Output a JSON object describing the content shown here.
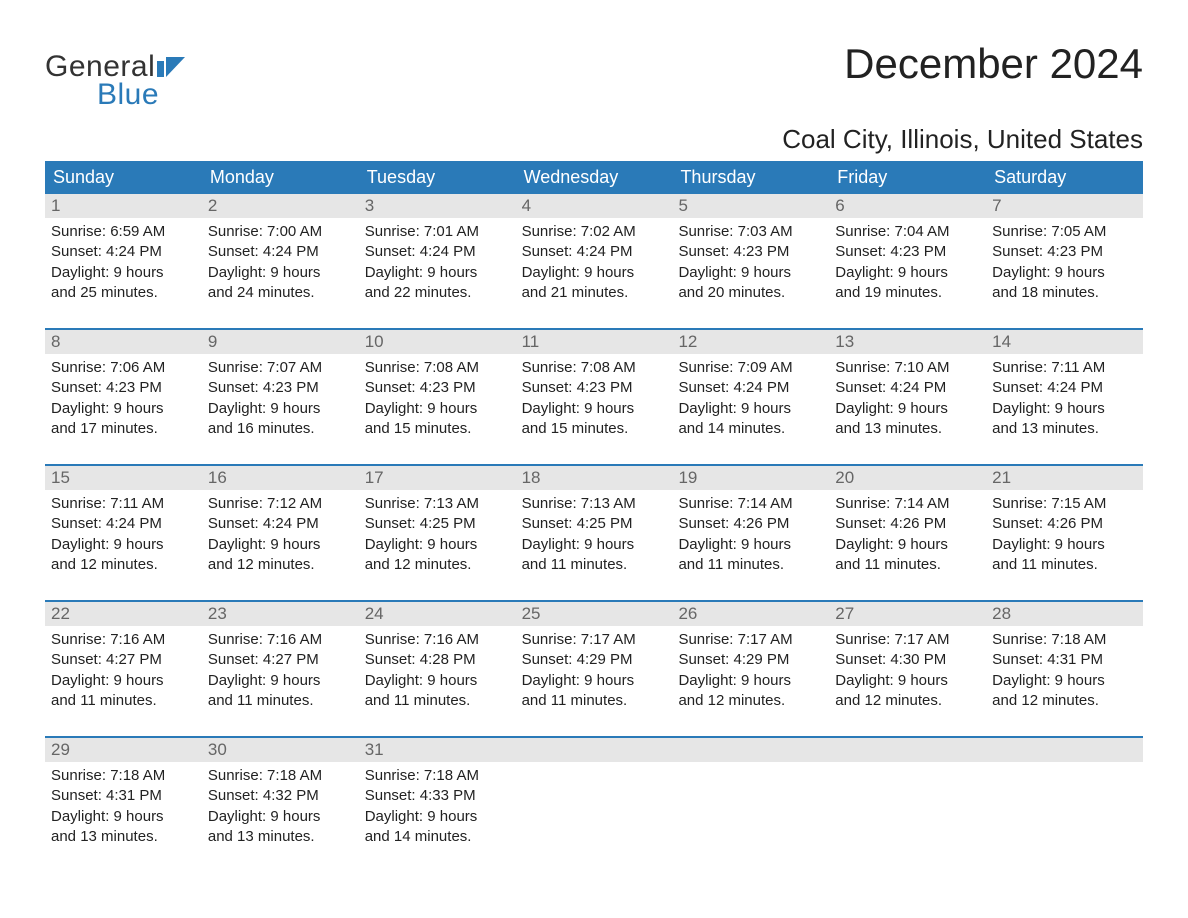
{
  "logo": {
    "line1": "General",
    "line2": "Blue",
    "icon_color": "#2a7ab8",
    "text_gray": "#333333"
  },
  "title": "December 2024",
  "location": "Coal City, Illinois, United States",
  "colors": {
    "header_bg": "#2a7ab8",
    "header_text": "#ffffff",
    "daynum_bg": "#e6e6e6",
    "daynum_text": "#666666",
    "body_text": "#222222",
    "row_border": "#2a7ab8",
    "page_bg": "#ffffff"
  },
  "fonts": {
    "family": "Arial, Helvetica, sans-serif",
    "title_size_pt": 32,
    "location_size_pt": 20,
    "dayheader_size_pt": 14,
    "daynum_size_pt": 13,
    "body_size_pt": 11
  },
  "day_headers": [
    "Sunday",
    "Monday",
    "Tuesday",
    "Wednesday",
    "Thursday",
    "Friday",
    "Saturday"
  ],
  "weeks": [
    [
      {
        "num": "1",
        "sunrise": "Sunrise: 6:59 AM",
        "sunset": "Sunset: 4:24 PM",
        "dl1": "Daylight: 9 hours",
        "dl2": "and 25 minutes."
      },
      {
        "num": "2",
        "sunrise": "Sunrise: 7:00 AM",
        "sunset": "Sunset: 4:24 PM",
        "dl1": "Daylight: 9 hours",
        "dl2": "and 24 minutes."
      },
      {
        "num": "3",
        "sunrise": "Sunrise: 7:01 AM",
        "sunset": "Sunset: 4:24 PM",
        "dl1": "Daylight: 9 hours",
        "dl2": "and 22 minutes."
      },
      {
        "num": "4",
        "sunrise": "Sunrise: 7:02 AM",
        "sunset": "Sunset: 4:24 PM",
        "dl1": "Daylight: 9 hours",
        "dl2": "and 21 minutes."
      },
      {
        "num": "5",
        "sunrise": "Sunrise: 7:03 AM",
        "sunset": "Sunset: 4:23 PM",
        "dl1": "Daylight: 9 hours",
        "dl2": "and 20 minutes."
      },
      {
        "num": "6",
        "sunrise": "Sunrise: 7:04 AM",
        "sunset": "Sunset: 4:23 PM",
        "dl1": "Daylight: 9 hours",
        "dl2": "and 19 minutes."
      },
      {
        "num": "7",
        "sunrise": "Sunrise: 7:05 AM",
        "sunset": "Sunset: 4:23 PM",
        "dl1": "Daylight: 9 hours",
        "dl2": "and 18 minutes."
      }
    ],
    [
      {
        "num": "8",
        "sunrise": "Sunrise: 7:06 AM",
        "sunset": "Sunset: 4:23 PM",
        "dl1": "Daylight: 9 hours",
        "dl2": "and 17 minutes."
      },
      {
        "num": "9",
        "sunrise": "Sunrise: 7:07 AM",
        "sunset": "Sunset: 4:23 PM",
        "dl1": "Daylight: 9 hours",
        "dl2": "and 16 minutes."
      },
      {
        "num": "10",
        "sunrise": "Sunrise: 7:08 AM",
        "sunset": "Sunset: 4:23 PM",
        "dl1": "Daylight: 9 hours",
        "dl2": "and 15 minutes."
      },
      {
        "num": "11",
        "sunrise": "Sunrise: 7:08 AM",
        "sunset": "Sunset: 4:23 PM",
        "dl1": "Daylight: 9 hours",
        "dl2": "and 15 minutes."
      },
      {
        "num": "12",
        "sunrise": "Sunrise: 7:09 AM",
        "sunset": "Sunset: 4:24 PM",
        "dl1": "Daylight: 9 hours",
        "dl2": "and 14 minutes."
      },
      {
        "num": "13",
        "sunrise": "Sunrise: 7:10 AM",
        "sunset": "Sunset: 4:24 PM",
        "dl1": "Daylight: 9 hours",
        "dl2": "and 13 minutes."
      },
      {
        "num": "14",
        "sunrise": "Sunrise: 7:11 AM",
        "sunset": "Sunset: 4:24 PM",
        "dl1": "Daylight: 9 hours",
        "dl2": "and 13 minutes."
      }
    ],
    [
      {
        "num": "15",
        "sunrise": "Sunrise: 7:11 AM",
        "sunset": "Sunset: 4:24 PM",
        "dl1": "Daylight: 9 hours",
        "dl2": "and 12 minutes."
      },
      {
        "num": "16",
        "sunrise": "Sunrise: 7:12 AM",
        "sunset": "Sunset: 4:24 PM",
        "dl1": "Daylight: 9 hours",
        "dl2": "and 12 minutes."
      },
      {
        "num": "17",
        "sunrise": "Sunrise: 7:13 AM",
        "sunset": "Sunset: 4:25 PM",
        "dl1": "Daylight: 9 hours",
        "dl2": "and 12 minutes."
      },
      {
        "num": "18",
        "sunrise": "Sunrise: 7:13 AM",
        "sunset": "Sunset: 4:25 PM",
        "dl1": "Daylight: 9 hours",
        "dl2": "and 11 minutes."
      },
      {
        "num": "19",
        "sunrise": "Sunrise: 7:14 AM",
        "sunset": "Sunset: 4:26 PM",
        "dl1": "Daylight: 9 hours",
        "dl2": "and 11 minutes."
      },
      {
        "num": "20",
        "sunrise": "Sunrise: 7:14 AM",
        "sunset": "Sunset: 4:26 PM",
        "dl1": "Daylight: 9 hours",
        "dl2": "and 11 minutes."
      },
      {
        "num": "21",
        "sunrise": "Sunrise: 7:15 AM",
        "sunset": "Sunset: 4:26 PM",
        "dl1": "Daylight: 9 hours",
        "dl2": "and 11 minutes."
      }
    ],
    [
      {
        "num": "22",
        "sunrise": "Sunrise: 7:16 AM",
        "sunset": "Sunset: 4:27 PM",
        "dl1": "Daylight: 9 hours",
        "dl2": "and 11 minutes."
      },
      {
        "num": "23",
        "sunrise": "Sunrise: 7:16 AM",
        "sunset": "Sunset: 4:27 PM",
        "dl1": "Daylight: 9 hours",
        "dl2": "and 11 minutes."
      },
      {
        "num": "24",
        "sunrise": "Sunrise: 7:16 AM",
        "sunset": "Sunset: 4:28 PM",
        "dl1": "Daylight: 9 hours",
        "dl2": "and 11 minutes."
      },
      {
        "num": "25",
        "sunrise": "Sunrise: 7:17 AM",
        "sunset": "Sunset: 4:29 PM",
        "dl1": "Daylight: 9 hours",
        "dl2": "and 11 minutes."
      },
      {
        "num": "26",
        "sunrise": "Sunrise: 7:17 AM",
        "sunset": "Sunset: 4:29 PM",
        "dl1": "Daylight: 9 hours",
        "dl2": "and 12 minutes."
      },
      {
        "num": "27",
        "sunrise": "Sunrise: 7:17 AM",
        "sunset": "Sunset: 4:30 PM",
        "dl1": "Daylight: 9 hours",
        "dl2": "and 12 minutes."
      },
      {
        "num": "28",
        "sunrise": "Sunrise: 7:18 AM",
        "sunset": "Sunset: 4:31 PM",
        "dl1": "Daylight: 9 hours",
        "dl2": "and 12 minutes."
      }
    ],
    [
      {
        "num": "29",
        "sunrise": "Sunrise: 7:18 AM",
        "sunset": "Sunset: 4:31 PM",
        "dl1": "Daylight: 9 hours",
        "dl2": "and 13 minutes."
      },
      {
        "num": "30",
        "sunrise": "Sunrise: 7:18 AM",
        "sunset": "Sunset: 4:32 PM",
        "dl1": "Daylight: 9 hours",
        "dl2": "and 13 minutes."
      },
      {
        "num": "31",
        "sunrise": "Sunrise: 7:18 AM",
        "sunset": "Sunset: 4:33 PM",
        "dl1": "Daylight: 9 hours",
        "dl2": "and 14 minutes."
      },
      {
        "num": "",
        "sunrise": "",
        "sunset": "",
        "dl1": "",
        "dl2": ""
      },
      {
        "num": "",
        "sunrise": "",
        "sunset": "",
        "dl1": "",
        "dl2": ""
      },
      {
        "num": "",
        "sunrise": "",
        "sunset": "",
        "dl1": "",
        "dl2": ""
      },
      {
        "num": "",
        "sunrise": "",
        "sunset": "",
        "dl1": "",
        "dl2": ""
      }
    ]
  ]
}
